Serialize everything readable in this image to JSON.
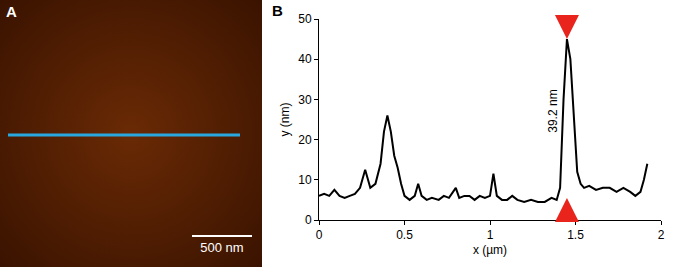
{
  "panel_a": {
    "label": "A",
    "scale_bar": "500 nm",
    "line_color": "#29a8e0"
  },
  "chart_data": {
    "type": "line",
    "label": "B",
    "color": "#000000",
    "x_label": "x (µm)",
    "y_label": "y (nm)",
    "x": [
      0,
      0.03,
      0.06,
      0.09,
      0.12,
      0.15,
      0.18,
      0.21,
      0.24,
      0.27,
      0.3,
      0.33,
      0.36,
      0.38,
      0.4,
      0.42,
      0.44,
      0.46,
      0.48,
      0.5,
      0.53,
      0.56,
      0.58,
      0.6,
      0.63,
      0.66,
      0.7,
      0.73,
      0.76,
      0.8,
      0.82,
      0.85,
      0.88,
      0.91,
      0.94,
      0.97,
      1.0,
      1.02,
      1.04,
      1.07,
      1.1,
      1.13,
      1.16,
      1.2,
      1.24,
      1.28,
      1.32,
      1.36,
      1.39,
      1.41,
      1.43,
      1.45,
      1.47,
      1.49,
      1.51,
      1.53,
      1.55,
      1.58,
      1.62,
      1.66,
      1.7,
      1.74,
      1.78,
      1.82,
      1.85,
      1.88,
      1.9,
      1.92
    ],
    "values": [
      6,
      6.5,
      6,
      7.5,
      6,
      5.5,
      6,
      6.5,
      8,
      12.5,
      8,
      9,
      14,
      22,
      26,
      22,
      16,
      13,
      9,
      6,
      5,
      6,
      9,
      6,
      5,
      5.5,
      5,
      6,
      5.5,
      8,
      5.5,
      6,
      6,
      5,
      6,
      5.5,
      6,
      11.5,
      6,
      5,
      5,
      6,
      5,
      4.5,
      5,
      4.5,
      4.5,
      5.5,
      5,
      8,
      30,
      45,
      40,
      25,
      12,
      9,
      8,
      8.5,
      7.5,
      8,
      8,
      7,
      8,
      7,
      6,
      7,
      10,
      14
    ],
    "xlim": [
      0,
      2
    ],
    "xticks": [
      0,
      0.5,
      1,
      1.5,
      2
    ],
    "ylim": [
      0,
      50
    ],
    "yticks": [
      0,
      10,
      20,
      30,
      40,
      50
    ],
    "grid": false,
    "annotations": [
      {
        "text": "39.2 nm",
        "x": 1.37,
        "y": 27
      }
    ],
    "arrows": [
      {
        "x": 1.45,
        "y": 45,
        "direction": "down"
      },
      {
        "x": 1.45,
        "y": 5.5,
        "direction": "up"
      }
    ],
    "arrow_color": "#e8241c"
  }
}
